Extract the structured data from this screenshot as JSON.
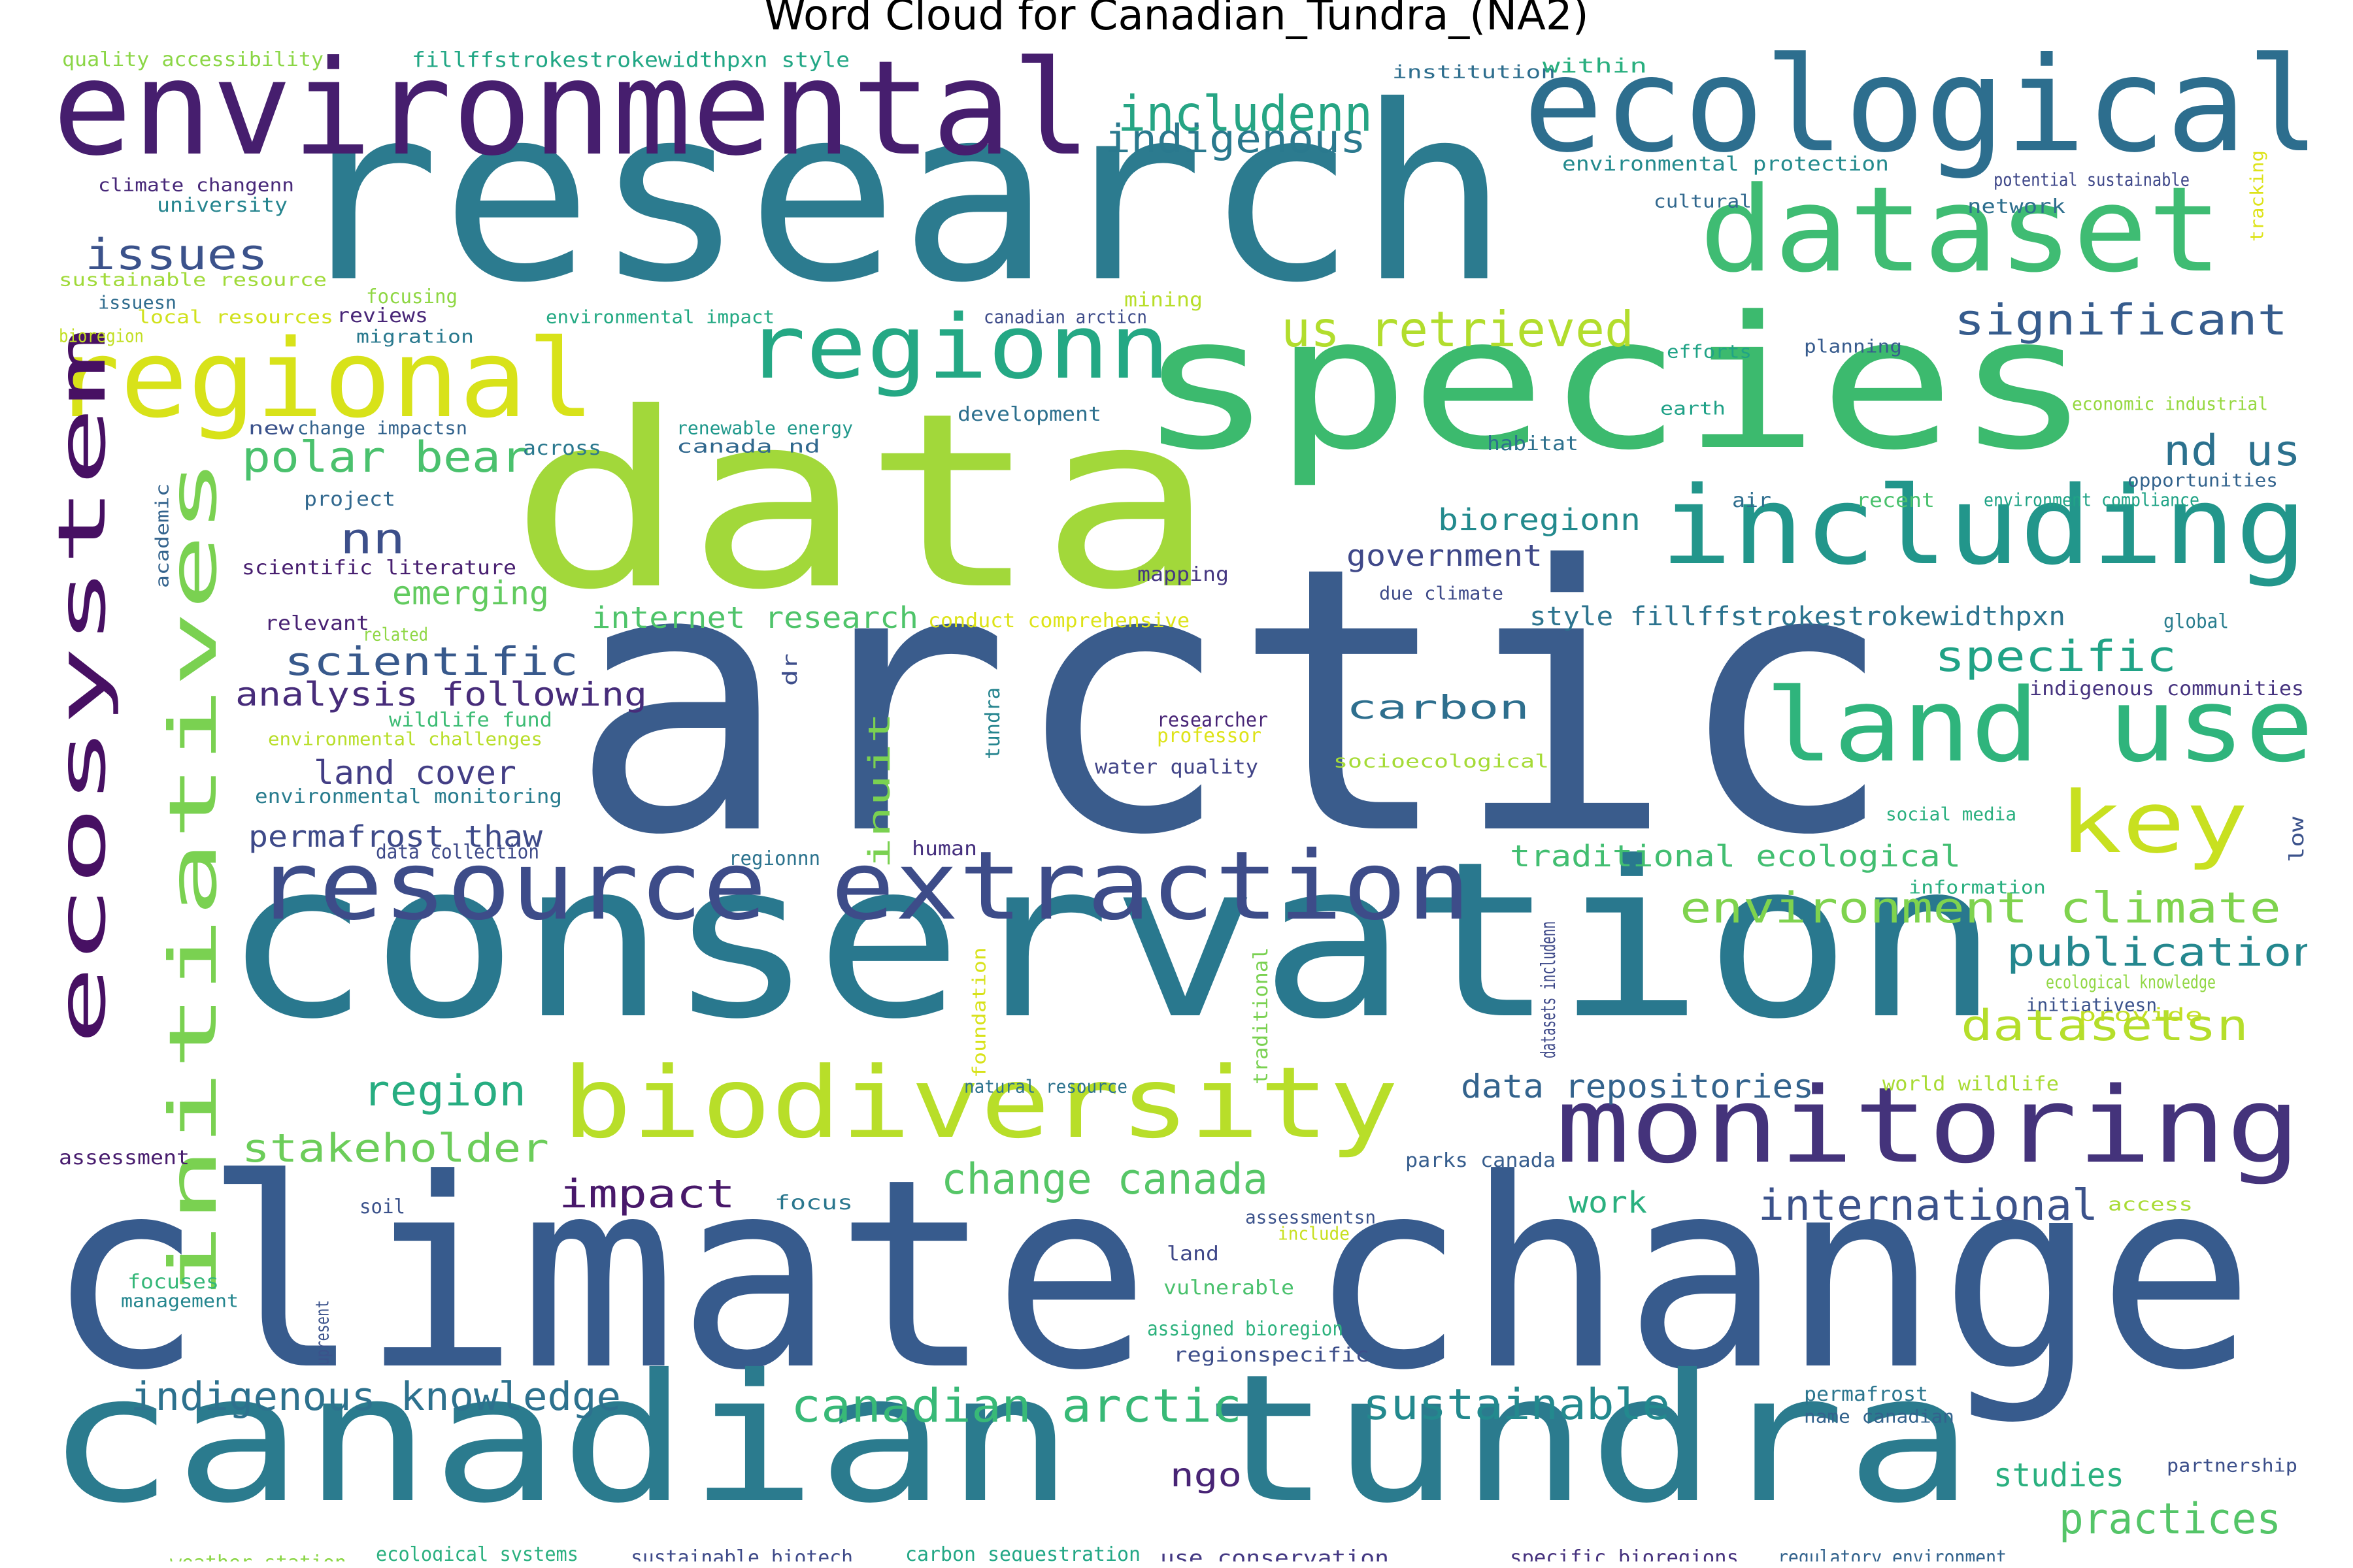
{
  "title": "Word Cloud for Canadian_Tundra_(NA2)",
  "palette": [
    "#440154",
    "#482878",
    "#3e4a89",
    "#31688e",
    "#26828e",
    "#1f9e89",
    "#35b779",
    "#6ece58",
    "#b5de2b",
    "#fde725"
  ],
  "words": [
    {
      "text": "arctic",
      "color": "#3a5c8c"
    },
    {
      "text": "research",
      "color": "#2c7b8f"
    },
    {
      "text": "climate change",
      "color": "#375b8d"
    },
    {
      "text": "conservation",
      "color": "#29788e"
    },
    {
      "text": "data",
      "color": "#a2d83a"
    },
    {
      "text": "species",
      "color": "#3cba6e"
    },
    {
      "text": "canadian tundra",
      "color": "#2b7b8e"
    },
    {
      "text": "environmental",
      "color": "#461e6e"
    },
    {
      "text": "ecological",
      "color": "#2d6e8e"
    },
    {
      "text": "dataset",
      "color": "#3fbc73"
    },
    {
      "text": "resource extraction",
      "color": "#3d4c89"
    },
    {
      "text": "biodiversity",
      "color": "#b8de29"
    },
    {
      "text": "monitoring",
      "color": "#44337b"
    },
    {
      "text": "regional",
      "color": "#d8e219"
    },
    {
      "text": "regionn",
      "color": "#24a884"
    },
    {
      "text": "including",
      "color": "#22968b"
    },
    {
      "text": "land use",
      "color": "#2fb47c"
    },
    {
      "text": "ecosystem",
      "color": "#471063"
    },
    {
      "text": "initiatives",
      "color": "#7ad151"
    },
    {
      "text": "key",
      "color": "#c8e020"
    },
    {
      "text": "includenn",
      "color": "#26a584"
    },
    {
      "text": "indigenous",
      "color": "#2a798e"
    },
    {
      "text": "us retrieved",
      "color": "#b2dd2d"
    },
    {
      "text": "significant",
      "color": "#365c8d"
    },
    {
      "text": "issues",
      "color": "#3b528b"
    },
    {
      "text": "polar bear",
      "color": "#4ac16d"
    },
    {
      "text": "nd us",
      "color": "#2c718e"
    },
    {
      "text": "nn",
      "color": "#3c4f8a"
    },
    {
      "text": "bioregionn",
      "color": "#238a8d"
    },
    {
      "text": "government",
      "color": "#3f4889"
    },
    {
      "text": "emerging",
      "color": "#62cb5f"
    },
    {
      "text": "internet research",
      "color": "#4fc46a"
    },
    {
      "text": "style fillffstrokestrokewidthpxn",
      "color": "#2c738e"
    },
    {
      "text": "scientific",
      "color": "#38598c"
    },
    {
      "text": "specific",
      "color": "#20a386"
    },
    {
      "text": "analysis following",
      "color": "#472c7a"
    },
    {
      "text": "carbon",
      "color": "#2e6f8e"
    },
    {
      "text": "land cover",
      "color": "#433e85"
    },
    {
      "text": "permafrost thaw",
      "color": "#3e4a89"
    },
    {
      "text": "traditional ecological",
      "color": "#42be71"
    },
    {
      "text": "environment climate",
      "color": "#7fd34e"
    },
    {
      "text": "publication",
      "color": "#24878e"
    },
    {
      "text": "datasetsn",
      "color": "#b5de2b"
    },
    {
      "text": "region",
      "color": "#27ad81"
    },
    {
      "text": "stakeholder",
      "color": "#6ccd5a"
    },
    {
      "text": "data repositories",
      "color": "#33638d"
    },
    {
      "text": "change canada",
      "color": "#56c667"
    },
    {
      "text": "impact",
      "color": "#48186a"
    },
    {
      "text": "work",
      "color": "#2ab07f"
    },
    {
      "text": "international",
      "color": "#3b528b"
    },
    {
      "text": "indigenous knowledge",
      "color": "#2d718e"
    },
    {
      "text": "canadian arctic",
      "color": "#38b977"
    },
    {
      "text": "sustainable",
      "color": "#23898e"
    },
    {
      "text": "ngo",
      "color": "#482475"
    },
    {
      "text": "studies",
      "color": "#2ab07f"
    },
    {
      "text": "practices",
      "color": "#54c568"
    },
    {
      "text": "inuit",
      "color": "#7ad151"
    },
    {
      "text": "quality accessibility",
      "color": "#8bd646"
    },
    {
      "text": "fillffstrokestrokewidthpxn style",
      "color": "#22a785"
    },
    {
      "text": "institution",
      "color": "#2e6e8e"
    },
    {
      "text": "within",
      "color": "#29af7f"
    },
    {
      "text": "environmental protection",
      "color": "#238a8d"
    },
    {
      "text": "potential sustainable",
      "color": "#3f4889"
    },
    {
      "text": "tracking",
      "color": "#dde318"
    },
    {
      "text": "climate changenn",
      "color": "#482979"
    },
    {
      "text": "university",
      "color": "#25848e"
    },
    {
      "text": "cultural",
      "color": "#31688e"
    },
    {
      "text": "network",
      "color": "#2e6f8e"
    },
    {
      "text": "sustainable resource",
      "color": "#a0da39"
    },
    {
      "text": "focusing",
      "color": "#8fd744"
    },
    {
      "text": "mining",
      "color": "#b8de29"
    },
    {
      "text": "issuesn",
      "color": "#2f6c8e"
    },
    {
      "text": "local resources",
      "color": "#d0e11c"
    },
    {
      "text": "reviews",
      "color": "#482677"
    },
    {
      "text": "environmental impact",
      "color": "#23a983"
    },
    {
      "text": "canadian arcticn",
      "color": "#3e4c8a"
    },
    {
      "text": "bioregion",
      "color": "#c2df23"
    },
    {
      "text": "migration",
      "color": "#29798e"
    },
    {
      "text": "efforts",
      "color": "#20a386"
    },
    {
      "text": "planning",
      "color": "#375b8d"
    },
    {
      "text": "earth",
      "color": "#1fa187"
    },
    {
      "text": "development",
      "color": "#2d708e"
    },
    {
      "text": "economic industrial",
      "color": "#95d840"
    },
    {
      "text": "new",
      "color": "#3b528b"
    },
    {
      "text": "change impactsn",
      "color": "#33638d"
    },
    {
      "text": "renewable energy",
      "color": "#1f988b"
    },
    {
      "text": "canada nd",
      "color": "#31688e"
    },
    {
      "text": "across",
      "color": "#2a788e"
    },
    {
      "text": "habitat",
      "color": "#2d708e"
    },
    {
      "text": "opportunities",
      "color": "#33638d"
    },
    {
      "text": "project",
      "color": "#31688e"
    },
    {
      "text": "air",
      "color": "#2e6e8e"
    },
    {
      "text": "recent",
      "color": "#4ac16d"
    },
    {
      "text": "environment compliance",
      "color": "#20a386"
    },
    {
      "text": "academic",
      "color": "#33638d"
    },
    {
      "text": "scientific literature",
      "color": "#481f70"
    },
    {
      "text": "mapping",
      "color": "#453781"
    },
    {
      "text": "due climate",
      "color": "#3e4a89"
    },
    {
      "text": "relevant",
      "color": "#482173"
    },
    {
      "text": "related",
      "color": "#8fd744"
    },
    {
      "text": "conduct comprehensive",
      "color": "#dde318"
    },
    {
      "text": "global",
      "color": "#287d8e"
    },
    {
      "text": "dr",
      "color": "#3d4d8a"
    },
    {
      "text": "indigenous communities",
      "color": "#46337f"
    },
    {
      "text": "wildlife fund",
      "color": "#3dbc74"
    },
    {
      "text": "tundra",
      "color": "#25848e"
    },
    {
      "text": "researcher",
      "color": "#482576"
    },
    {
      "text": "professor",
      "color": "#dde318"
    },
    {
      "text": "environmental challenges",
      "color": "#b8de29"
    },
    {
      "text": "socioecological",
      "color": "#a5db36"
    },
    {
      "text": "water quality",
      "color": "#414487"
    },
    {
      "text": "environmental monitoring",
      "color": "#287c8e"
    },
    {
      "text": "social media",
      "color": "#2ab07f"
    },
    {
      "text": "low",
      "color": "#3b528b"
    },
    {
      "text": "data collection",
      "color": "#3e4a89"
    },
    {
      "text": "human",
      "color": "#46307e"
    },
    {
      "text": "regionnn",
      "color": "#2c738e"
    },
    {
      "text": "information",
      "color": "#29af7f"
    },
    {
      "text": "foundation",
      "color": "#d8e219"
    },
    {
      "text": "traditional",
      "color": "#7ad151"
    },
    {
      "text": "datasets includenn",
      "color": "#3e4989"
    },
    {
      "text": "ecological knowledge",
      "color": "#90d743"
    },
    {
      "text": "initiativesn",
      "color": "#3b528b"
    },
    {
      "text": "provide",
      "color": "#c2df23"
    },
    {
      "text": "natural resource",
      "color": "#2c728e"
    },
    {
      "text": "world wildlife",
      "color": "#a8db34"
    },
    {
      "text": "assessment",
      "color": "#481c6e"
    },
    {
      "text": "parks canada",
      "color": "#365d8d"
    },
    {
      "text": "soil",
      "color": "#3b528b"
    },
    {
      "text": "focus",
      "color": "#2a778e"
    },
    {
      "text": "assessmentsn",
      "color": "#3b528b"
    },
    {
      "text": "include",
      "color": "#c8e020"
    },
    {
      "text": "access",
      "color": "#a8db34"
    },
    {
      "text": "land",
      "color": "#3f4889"
    },
    {
      "text": "focuses",
      "color": "#35b779"
    },
    {
      "text": "management",
      "color": "#24868e"
    },
    {
      "text": "upresent",
      "color": "#3b528b"
    },
    {
      "text": "vulnerable",
      "color": "#4ac16d"
    },
    {
      "text": "assigned bioregion",
      "color": "#2db27d"
    },
    {
      "text": "regionspecific",
      "color": "#3d4e8a"
    },
    {
      "text": "permafrost",
      "color": "#2b758e"
    },
    {
      "text": "name canadian",
      "color": "#33638d"
    },
    {
      "text": "partnership",
      "color": "#3c4f8a"
    },
    {
      "text": "weather station",
      "color": "#8bd646"
    },
    {
      "text": "ecological systems",
      "color": "#2ab07f"
    },
    {
      "text": "sustainable biotech",
      "color": "#3e4a89"
    },
    {
      "text": "carbon sequestration",
      "color": "#22a785"
    },
    {
      "text": "use conservation",
      "color": "#443983"
    },
    {
      "text": "specific bioregions",
      "color": "#46327e"
    },
    {
      "text": "regulatory environment",
      "color": "#33638d"
    }
  ]
}
